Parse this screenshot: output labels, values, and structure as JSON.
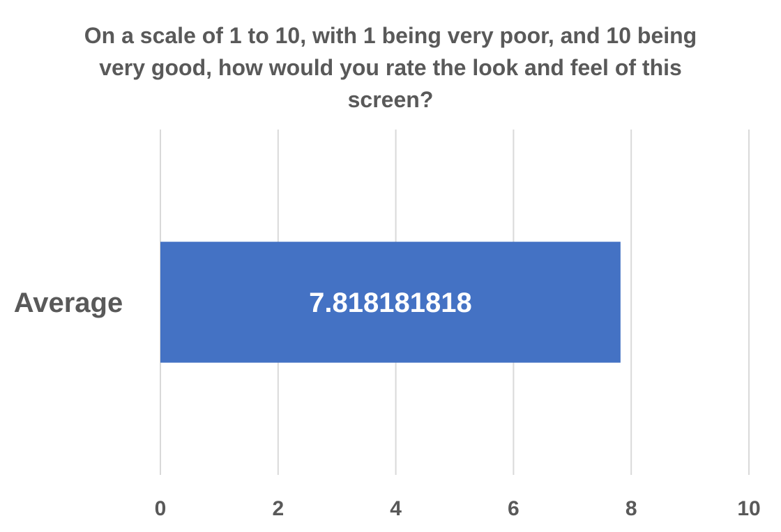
{
  "chart_data": {
    "type": "bar",
    "orientation": "horizontal",
    "title": "On a scale of 1 to 10, with 1 being very poor, and 10 being very good, how would you rate the look and feel of this screen?",
    "categories": [
      "Average"
    ],
    "values": [
      7.818181818
    ],
    "data_labels": [
      "7.818181818"
    ],
    "xlim": [
      0,
      10
    ],
    "x_ticks": [
      0,
      2,
      4,
      6,
      8,
      10
    ],
    "x_tick_labels": [
      "0",
      "2",
      "4",
      "6",
      "8",
      "10"
    ],
    "grid": true,
    "legend": "none",
    "colors": {
      "bar": "#4472c4",
      "grid": "#d9d9d9",
      "text": "#595959",
      "data_label": "#ffffff"
    }
  }
}
